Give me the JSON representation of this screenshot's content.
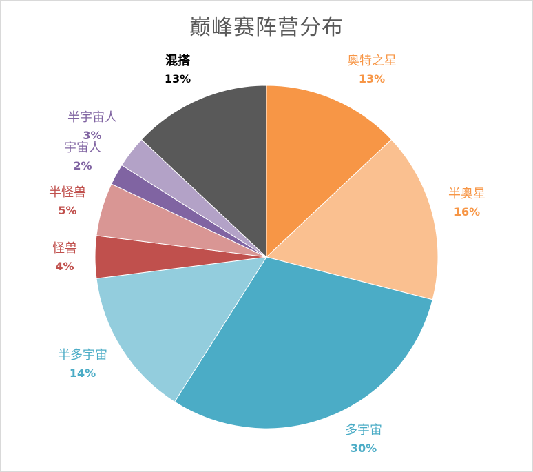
{
  "chart_data": {
    "type": "pie",
    "title": "巅峰赛阵营分布",
    "slices": [
      {
        "label": "奥特之星",
        "value": 13,
        "pct_label": "13%",
        "color": "#f79646",
        "text_color": "#f79646"
      },
      {
        "label": "半奥星",
        "value": 16,
        "pct_label": "16%",
        "color": "#fac090",
        "text_color": "#f79646"
      },
      {
        "label": "多宇宙",
        "value": 30,
        "pct_label": "30%",
        "color": "#4bacc6",
        "text_color": "#4bacc6"
      },
      {
        "label": "半多宇宙",
        "value": 14,
        "pct_label": "14%",
        "color": "#93cddd",
        "text_color": "#4bacc6"
      },
      {
        "label": "怪兽",
        "value": 4,
        "pct_label": "4%",
        "color": "#c0504d",
        "text_color": "#c0504d"
      },
      {
        "label": "半怪兽",
        "value": 5,
        "pct_label": "5%",
        "color": "#d99694",
        "text_color": "#c0504d"
      },
      {
        "label": "宇宙人",
        "value": 2,
        "pct_label": "2%",
        "color": "#8064a2",
        "text_color": "#8064a2"
      },
      {
        "label": "半宇宙人",
        "value": 3,
        "pct_label": "3%",
        "color": "#b3a2c7",
        "text_color": "#8064a2"
      },
      {
        "label": "混搭",
        "value": 13,
        "pct_label": "13%",
        "color": "#595959",
        "text_color": "#000000"
      }
    ]
  }
}
